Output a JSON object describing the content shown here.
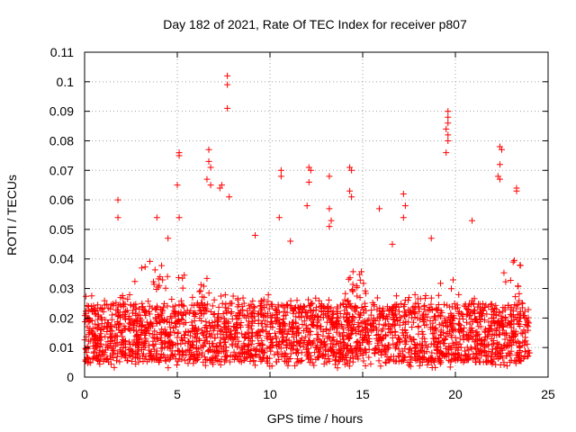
{
  "chart_data": {
    "type": "scatter",
    "title": "Day 182 of 2021, Rate Of TEC Index for receiver p807",
    "xlabel": "GPS time / hours",
    "ylabel": "ROTI / TECUs",
    "xlim": [
      0,
      25
    ],
    "ylim": [
      0,
      0.11
    ],
    "xticks": [
      0,
      5,
      10,
      15,
      20,
      25
    ],
    "xtick_labels": [
      "0",
      "5",
      "10",
      "15",
      "20",
      "25"
    ],
    "yticks": [
      0,
      0.01,
      0.02,
      0.03,
      0.04,
      0.05,
      0.06,
      0.07,
      0.08,
      0.09,
      0.1,
      0.11
    ],
    "ytick_labels": [
      "0",
      "0.01",
      "0.02",
      "0.03",
      "0.04",
      "0.05",
      "0.06",
      "0.07",
      "0.08",
      "0.09",
      "0.1",
      "0.11"
    ],
    "grid": true,
    "marker": "+",
    "marker_color": "#ff0000",
    "data_extent_hours": [
      0,
      24
    ],
    "points": [
      [
        7.7,
        0.102
      ],
      [
        7.7,
        0.099
      ],
      [
        7.7,
        0.091
      ],
      [
        19.6,
        0.09
      ],
      [
        19.6,
        0.088
      ],
      [
        19.6,
        0.086
      ],
      [
        19.5,
        0.084
      ],
      [
        19.6,
        0.082
      ],
      [
        19.6,
        0.08
      ],
      [
        19.5,
        0.076
      ],
      [
        22.4,
        0.078
      ],
      [
        22.5,
        0.077
      ],
      [
        22.4,
        0.072
      ],
      [
        22.3,
        0.068
      ],
      [
        22.4,
        0.067
      ],
      [
        5.1,
        0.076
      ],
      [
        5.1,
        0.075
      ],
      [
        5.0,
        0.065
      ],
      [
        5.1,
        0.054
      ],
      [
        6.7,
        0.077
      ],
      [
        6.7,
        0.073
      ],
      [
        6.8,
        0.071
      ],
      [
        6.6,
        0.067
      ],
      [
        6.8,
        0.065
      ],
      [
        7.3,
        0.064
      ],
      [
        7.4,
        0.065
      ],
      [
        7.8,
        0.061
      ],
      [
        10.6,
        0.07
      ],
      [
        10.6,
        0.068
      ],
      [
        10.5,
        0.054
      ],
      [
        12.1,
        0.071
      ],
      [
        12.2,
        0.07
      ],
      [
        12.1,
        0.066
      ],
      [
        12.0,
        0.058
      ],
      [
        13.2,
        0.068
      ],
      [
        13.2,
        0.057
      ],
      [
        13.3,
        0.053
      ],
      [
        13.2,
        0.051
      ],
      [
        14.3,
        0.071
      ],
      [
        14.4,
        0.07
      ],
      [
        14.3,
        0.063
      ],
      [
        14.4,
        0.061
      ],
      [
        17.2,
        0.062
      ],
      [
        17.3,
        0.058
      ],
      [
        17.2,
        0.054
      ],
      [
        23.3,
        0.064
      ],
      [
        23.3,
        0.063
      ],
      [
        1.8,
        0.06
      ],
      [
        1.8,
        0.054
      ],
      [
        3.9,
        0.054
      ],
      [
        9.2,
        0.048
      ],
      [
        15.9,
        0.057
      ],
      [
        20.9,
        0.053
      ],
      [
        4.5,
        0.047
      ],
      [
        11.1,
        0.046
      ],
      [
        18.7,
        0.047
      ],
      [
        16.6,
        0.045
      ]
    ],
    "bulk_summary": {
      "note": "dense band of + markers for 0-24 h",
      "typical_range": [
        0.005,
        0.025
      ],
      "lower_bound": 0.003,
      "busy_intervals_upper": [
        [
          2.5,
          4.5,
          0.042
        ],
        [
          5.0,
          7.5,
          0.035
        ],
        [
          14.0,
          15.5,
          0.036
        ],
        [
          19.0,
          20.5,
          0.035
        ],
        [
          22.5,
          24.0,
          0.04
        ]
      ]
    }
  }
}
